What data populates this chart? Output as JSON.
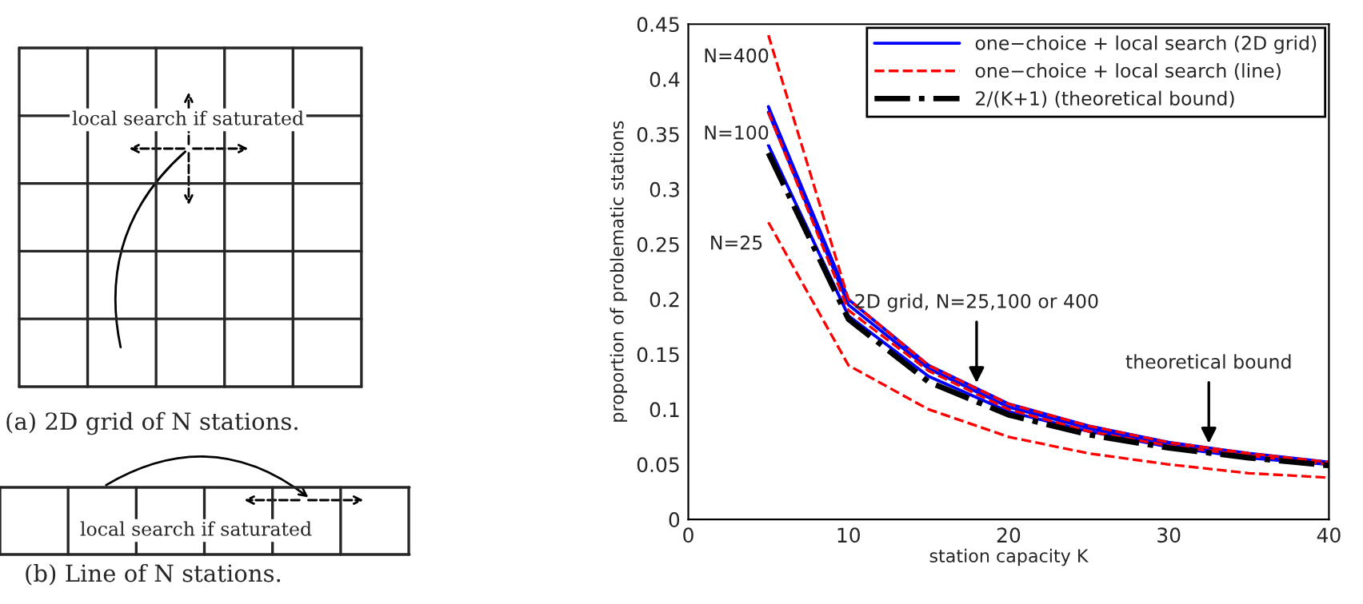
{
  "chart_data": {
    "type": "line",
    "xlabel": "station capacity K",
    "ylabel": "proportion of problematic stations",
    "x": [
      5,
      10,
      15,
      20,
      25,
      30,
      35,
      40
    ],
    "series": [
      {
        "name": "one−choice + local search (2D grid)",
        "color": "#0000ff",
        "line_style": "solid",
        "values": [
          0.375,
          0.2,
          0.14,
          0.105,
          0.085,
          0.07,
          0.06,
          0.052
        ]
      },
      {
        "color": "#0000ff",
        "line_style": "solid",
        "values": [
          0.37,
          0.195,
          0.137,
          0.102,
          0.083,
          0.068,
          0.058,
          0.051
        ]
      },
      {
        "color": "#0000ff",
        "line_style": "solid",
        "values": [
          0.34,
          0.185,
          0.13,
          0.098,
          0.08,
          0.066,
          0.056,
          0.05
        ]
      },
      {
        "name": "one−choice + local search (line)",
        "color": "#ff0000",
        "line_style": "dashed",
        "values": [
          0.44,
          0.2,
          0.14,
          0.105,
          0.085,
          0.07,
          0.06,
          0.052
        ]
      },
      {
        "color": "#ff0000",
        "line_style": "dashed",
        "values": [
          0.37,
          0.19,
          0.135,
          0.1,
          0.08,
          0.067,
          0.058,
          0.05
        ]
      },
      {
        "color": "#ff0000",
        "line_style": "dashed",
        "values": [
          0.27,
          0.14,
          0.1,
          0.075,
          0.06,
          0.05,
          0.042,
          0.038
        ]
      },
      {
        "name": "2/(K+1) (theoretical bound)",
        "color": "#000000",
        "line_style": "dashdot",
        "values": [
          0.333,
          0.182,
          0.125,
          0.095,
          0.077,
          0.065,
          0.056,
          0.049
        ]
      }
    ],
    "xlim": [
      0,
      40
    ],
    "xticks": [
      0,
      10,
      20,
      30,
      40
    ],
    "ylim": [
      0,
      0.45
    ],
    "yticks": [
      0,
      0.05,
      0.1,
      0.15,
      0.2,
      0.25,
      0.3,
      0.35,
      0.4,
      0.45
    ],
    "legend": "top right",
    "grid": false,
    "annotations": [
      {
        "text": "N=400",
        "x": 3,
        "y": 0.42
      },
      {
        "text": "N=100",
        "x": 3,
        "y": 0.35
      },
      {
        "text": "N=25",
        "x": 3,
        "y": 0.25
      },
      {
        "text": "2D grid, N=25,100 or 400",
        "x": 18,
        "y": 0.12
      },
      {
        "text": "theoretical bound",
        "x": 32.5,
        "y": 0.065
      },
      "local search if saturated",
      "(a) 2D grid of N stations.",
      "local search if saturated",
      "(b) Line of N stations."
    ]
  }
}
